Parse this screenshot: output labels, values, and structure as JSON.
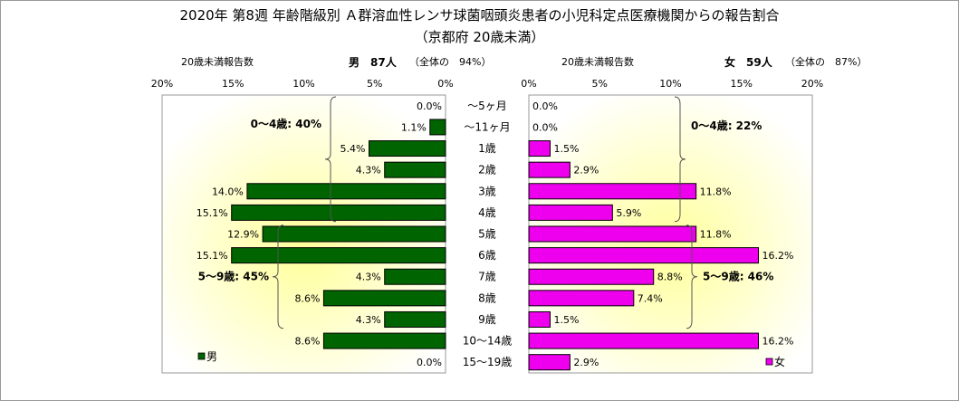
{
  "title": "2020年 第8週 年齢階級別 Ａ群溶血性レンサ球菌咽頭炎患者の小児科定点医療機関からの報告割合",
  "subtitle": "（京都府 20歳未満）",
  "male_header": {
    "label": "20歳未満報告数",
    "count": "男　87人",
    "ratio": "（全体の　94%）"
  },
  "female_header": {
    "label": "20歳未満報告数",
    "count": "女　59人",
    "ratio": "（全体の　87%）"
  },
  "chart_data": {
    "type": "bar",
    "orientation": "horizontal",
    "layout": "population-pyramid",
    "categories": [
      "～5ヶ月",
      "～11ヶ月",
      "1歳",
      "2歳",
      "3歳",
      "4歳",
      "5歳",
      "6歳",
      "7歳",
      "8歳",
      "9歳",
      "10～14歳",
      "15～19歳"
    ],
    "series": [
      {
        "name": "男",
        "color": "#006400",
        "values": [
          0.0,
          1.1,
          5.4,
          4.3,
          14.0,
          15.1,
          12.9,
          15.1,
          4.3,
          8.6,
          4.3,
          8.6,
          0.0
        ],
        "labels": [
          "0.0%",
          "1.1%",
          "5.4%",
          "4.3%",
          "14.0%",
          "15.1%",
          "12.9%",
          "15.1%",
          "4.3%",
          "8.6%",
          "4.3%",
          "8.6%",
          "0.0%"
        ]
      },
      {
        "name": "女",
        "color": "#ee00ee",
        "values": [
          0.0,
          0.0,
          1.5,
          2.9,
          11.8,
          5.9,
          11.8,
          16.2,
          8.8,
          7.4,
          1.5,
          16.2,
          2.9
        ],
        "labels": [
          "0.0%",
          "0.0%",
          "1.5%",
          "2.9%",
          "11.8%",
          "5.9%",
          "11.8%",
          "16.2%",
          "8.8%",
          "7.4%",
          "1.5%",
          "16.2%",
          "2.9%"
        ]
      }
    ],
    "x_range": [
      0,
      20
    ],
    "x_unit": "%",
    "ticks": [
      {
        "value": 20,
        "label": "20%"
      },
      {
        "value": 15,
        "label": "15%"
      },
      {
        "value": 10,
        "label": "10%"
      },
      {
        "value": 5,
        "label": "5%"
      },
      {
        "value": 0,
        "label": "0%"
      }
    ],
    "annotations": [
      {
        "series": "男",
        "text": "0～4歳: 40%",
        "from": "～5ヶ月",
        "to": "4歳"
      },
      {
        "series": "男",
        "text": "5～9歳: 45%",
        "from": "5歳",
        "to": "9歳"
      },
      {
        "series": "女",
        "text": "0～4歳: 22%",
        "from": "～5ヶ月",
        "to": "4歳"
      },
      {
        "series": "女",
        "text": "5～9歳: 46%",
        "from": "5歳",
        "to": "9歳"
      }
    ],
    "legend": {
      "position": "bottom-left / bottom-right",
      "male": "男",
      "female": "女"
    },
    "background": "radial yellow gradient"
  }
}
